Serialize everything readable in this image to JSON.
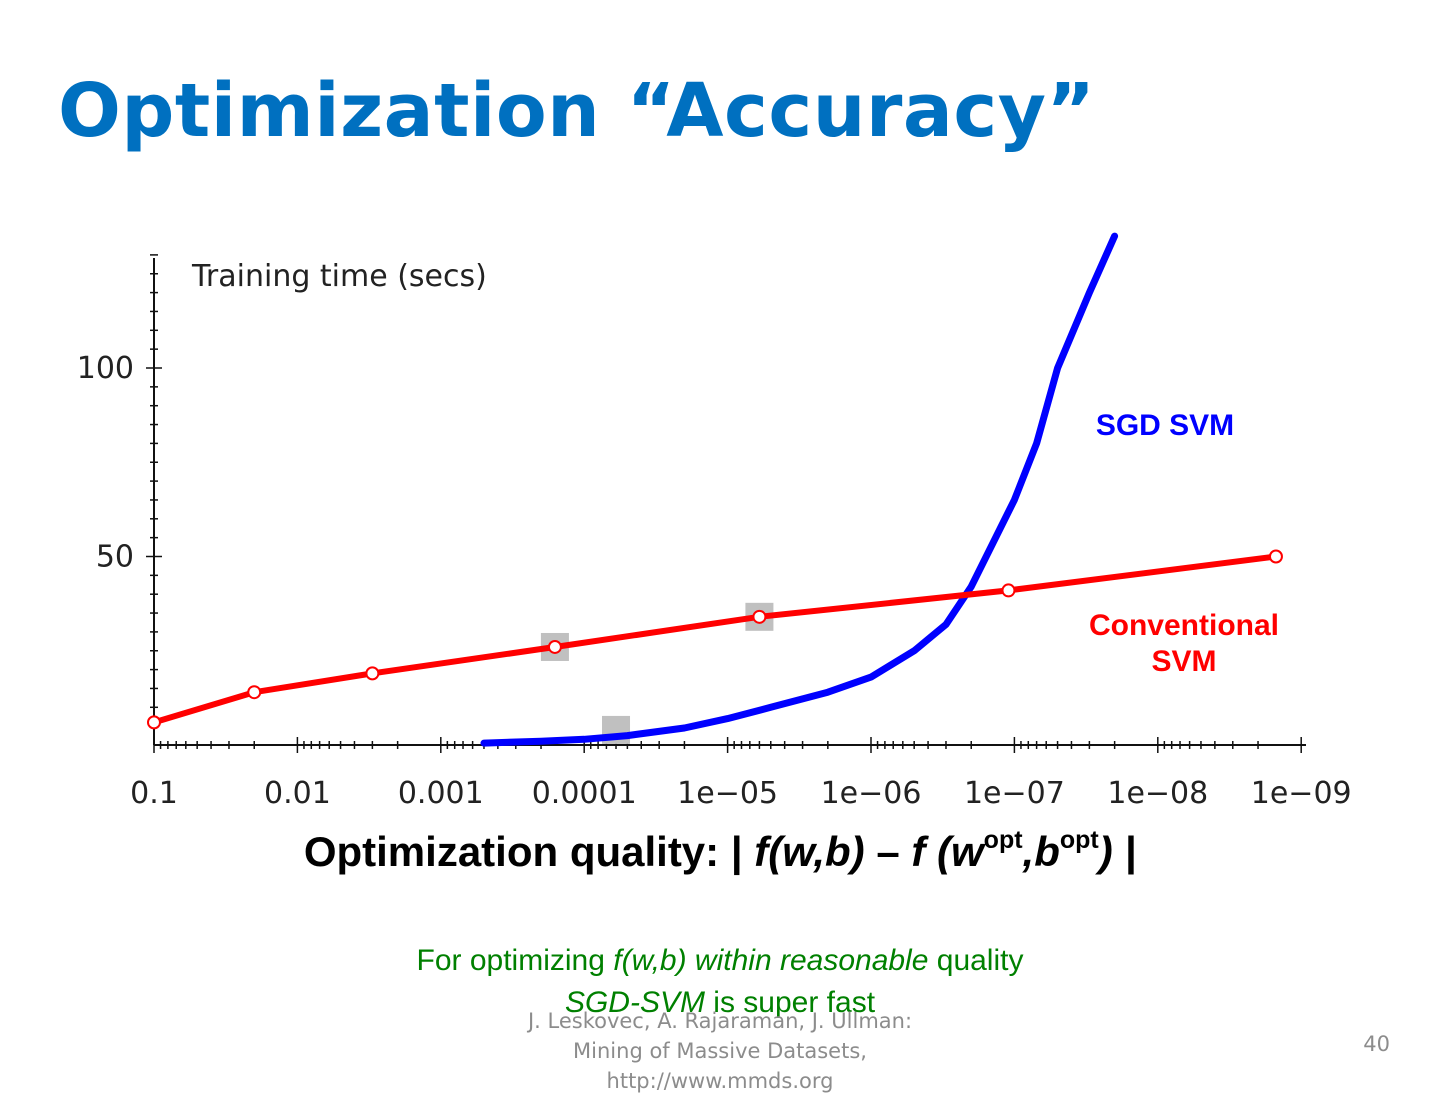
{
  "slide": {
    "title": "Optimization “Accuracy”",
    "x_title": {
      "prefix": "Optimization quality: | ",
      "f1": "f(w,b)",
      "dash": " – ",
      "f2": "f (w",
      "sup1": "opt",
      "comma": ",b",
      "sup2": "opt",
      "close": ") |"
    },
    "note_line1": {
      "a": "For optimizing ",
      "b": "f(w,b) within reasonable",
      "c": " quality"
    },
    "note_line2": {
      "a": "SGD-SVM",
      "b": " is super fast"
    },
    "footer": "J. Leskovec, A. Rajaraman, J. Ullman: Mining of Massive Datasets, http://www.mmds.org",
    "page_number": "40"
  },
  "chart_data": {
    "type": "line",
    "ylabel": "Training time (secs)",
    "xlabel": "",
    "x_scale": "log (decreasing error, left to right)",
    "x_ticks": [
      "0.1",
      "0.01",
      "0.001",
      "0.0001",
      "1e−05",
      "1e−06",
      "1e−07",
      "1e−08",
      "1e−09"
    ],
    "xlim": [
      0.1,
      5e-10
    ],
    "ylim": [
      0,
      130
    ],
    "y_ticks": [
      "50",
      "100"
    ],
    "y_tick_values": [
      50,
      100
    ],
    "series": [
      {
        "name": "SGD SVM",
        "color": "#0000ff",
        "x": [
          0.0005,
          0.0002,
          0.0001,
          5e-05,
          2e-05,
          1e-05,
          5e-06,
          2e-06,
          1e-06,
          5e-07,
          3e-07,
          2e-07,
          1e-07,
          7e-08,
          5e-08,
          3e-08,
          2e-08
        ],
        "y": [
          0.5,
          1.0,
          1.5,
          2.5,
          4.5,
          7,
          10,
          14,
          18,
          25,
          32,
          42,
          65,
          80,
          100,
          120,
          135
        ]
      },
      {
        "name": "Conventional SVM",
        "color": "#ff0000",
        "x": [
          0.1,
          0.02,
          0.003,
          0.00016,
          6e-06,
          1.1e-07,
          1.5e-09
        ],
        "y": [
          6,
          14,
          19,
          26,
          34,
          41,
          50
        ]
      }
    ],
    "gray_marker_color": "#c0c0c0",
    "gray_markers": [
      {
        "x": 0.00016,
        "y": 26
      },
      {
        "x": 6e-06,
        "y": 34
      },
      {
        "x": 6e-05,
        "y": 4
      }
    ]
  }
}
